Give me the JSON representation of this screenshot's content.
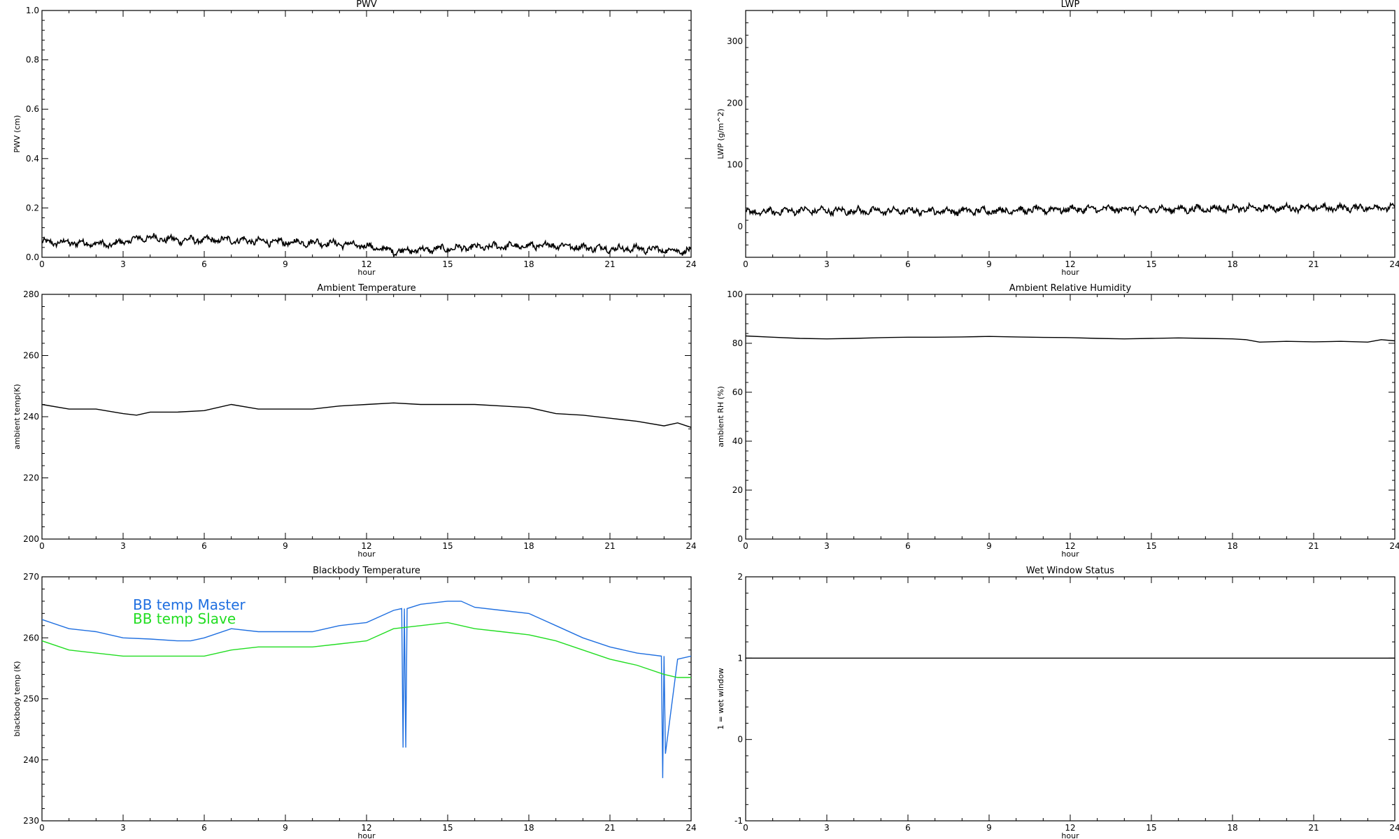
{
  "chart_data": [
    {
      "type": "line",
      "title": "PWV",
      "xlabel": "hour",
      "ylabel": "PWV (cm)",
      "xlim": [
        0,
        24
      ],
      "ylim": [
        0,
        1
      ],
      "xticks": [
        0,
        3,
        6,
        9,
        12,
        15,
        18,
        21,
        24
      ],
      "yticks": [
        0.0,
        0.2,
        0.4,
        0.6,
        0.8,
        1.0
      ],
      "ytick_labels": [
        "0.0",
        "0.2",
        "0.4",
        "0.6",
        "0.8",
        "1.0"
      ],
      "grid": false,
      "series": [
        {
          "color": "#000000",
          "noisy": true,
          "x": [
            0,
            1,
            2,
            2.5,
            3.5,
            4,
            5,
            6,
            7,
            8,
            9,
            10,
            11,
            12,
            12.5,
            13,
            14,
            15,
            16,
            17,
            18,
            19,
            20,
            21,
            22,
            23,
            24
          ],
          "y": [
            0.06,
            0.06,
            0.055,
            0.05,
            0.075,
            0.08,
            0.07,
            0.07,
            0.07,
            0.065,
            0.06,
            0.06,
            0.055,
            0.045,
            0.035,
            0.025,
            0.03,
            0.035,
            0.04,
            0.045,
            0.045,
            0.05,
            0.04,
            0.035,
            0.035,
            0.03,
            0.025
          ]
        }
      ]
    },
    {
      "type": "line",
      "title": "LWP",
      "xlabel": "hour",
      "ylabel": "LWP (g/m^2)",
      "xlim": [
        0,
        24
      ],
      "ylim": [
        -50,
        350
      ],
      "xticks": [
        0,
        3,
        6,
        9,
        12,
        15,
        18,
        21,
        24
      ],
      "yticks": [
        0,
        100,
        200,
        300
      ],
      "ytick_labels": [
        "0",
        "100",
        "200",
        "300"
      ],
      "grid": false,
      "series": [
        {
          "color": "#000000",
          "noisy": true,
          "x": [
            0,
            2,
            4,
            6,
            8,
            10,
            12,
            14,
            16,
            18,
            20,
            22,
            24
          ],
          "y": [
            22,
            26,
            25,
            25,
            25,
            26,
            28,
            28,
            28,
            29,
            30,
            30,
            31
          ]
        }
      ]
    },
    {
      "type": "line",
      "title": "Ambient Temperature",
      "xlabel": "hour",
      "ylabel": "ambient temp(K)",
      "xlim": [
        0,
        24
      ],
      "ylim": [
        200,
        280
      ],
      "xticks": [
        0,
        3,
        6,
        9,
        12,
        15,
        18,
        21,
        24
      ],
      "yticks": [
        200,
        220,
        240,
        260,
        280
      ],
      "ytick_labels": [
        "200",
        "220",
        "240",
        "260",
        "280"
      ],
      "grid": false,
      "series": [
        {
          "color": "#000000",
          "noisy": false,
          "x": [
            0,
            1,
            2,
            3,
            3.5,
            4,
            5,
            6,
            7,
            8,
            9,
            10,
            11,
            12,
            13,
            14,
            15,
            16,
            17,
            18,
            19,
            20,
            21,
            22,
            23,
            23.5,
            24
          ],
          "y": [
            244,
            242.5,
            242.5,
            241,
            240.5,
            241.5,
            241.5,
            242,
            244,
            242.5,
            242.5,
            242.5,
            243.5,
            244,
            244.5,
            244,
            244,
            244,
            243.5,
            243,
            241,
            240.5,
            239.5,
            238.5,
            237,
            238,
            236.5
          ]
        }
      ]
    },
    {
      "type": "line",
      "title": "Ambient Relative Humidity",
      "xlabel": "hour",
      "ylabel": "ambient RH (%)",
      "xlim": [
        0,
        24
      ],
      "ylim": [
        0,
        100
      ],
      "xticks": [
        0,
        3,
        6,
        9,
        12,
        15,
        18,
        21,
        24
      ],
      "yticks": [
        0,
        20,
        40,
        60,
        80,
        100
      ],
      "ytick_labels": [
        "0",
        "20",
        "40",
        "60",
        "80",
        "100"
      ],
      "grid": false,
      "series": [
        {
          "color": "#000000",
          "noisy": false,
          "x": [
            0,
            1,
            2,
            3,
            4,
            5,
            6,
            7,
            8,
            9,
            10,
            11,
            12,
            13,
            14,
            15,
            16,
            17,
            18,
            18.5,
            19,
            20,
            21,
            22,
            23,
            23.5,
            24
          ],
          "y": [
            83,
            82.5,
            82,
            81.8,
            82,
            82.3,
            82.5,
            82.5,
            82.6,
            82.8,
            82.6,
            82.4,
            82.3,
            82,
            81.8,
            82,
            82.2,
            82,
            81.8,
            81.5,
            80.5,
            80.8,
            80.6,
            80.8,
            80.5,
            81.5,
            81
          ]
        }
      ]
    },
    {
      "type": "line",
      "title": "Blackbody Temperature",
      "xlabel": "hour",
      "ylabel": "blackbody temp (K)",
      "xlim": [
        0,
        24
      ],
      "ylim": [
        230,
        270
      ],
      "xticks": [
        0,
        3,
        6,
        9,
        12,
        15,
        18,
        21,
        24
      ],
      "yticks": [
        230,
        240,
        250,
        260,
        270
      ],
      "ytick_labels": [
        "230",
        "240",
        "250",
        "260",
        "270"
      ],
      "grid": false,
      "legend": {
        "position": "top-left",
        "entries": [
          {
            "label": "BB temp Master",
            "color": "#1f6fe0"
          },
          {
            "label": "BB temp Slave",
            "color": "#22dd22"
          }
        ]
      },
      "series": [
        {
          "name": "BB temp Master",
          "color": "#1f6fe0",
          "noisy": false,
          "x": [
            0,
            1,
            2,
            3,
            4,
            5,
            5.5,
            6,
            7,
            8,
            9,
            10,
            11,
            12,
            13,
            13.3,
            13.35,
            13.4,
            13.45,
            13.5,
            14,
            15,
            15.5,
            16,
            17,
            18,
            19,
            20,
            21,
            22,
            22.9,
            22.95,
            23.0,
            23.05,
            23.5,
            24
          ],
          "y": [
            263,
            261.5,
            261,
            260,
            259.8,
            259.5,
            259.5,
            260,
            261.5,
            261,
            261,
            261,
            262,
            262.5,
            264.5,
            264.8,
            242,
            264.8,
            242,
            264.8,
            265.5,
            266,
            266,
            265,
            264.5,
            264,
            262,
            260,
            258.5,
            257.5,
            257,
            237,
            257,
            241,
            256.5,
            257
          ]
        },
        {
          "name": "BB temp Slave",
          "color": "#22dd22",
          "noisy": false,
          "x": [
            0,
            1,
            2,
            3,
            4,
            5,
            6,
            7,
            8,
            9,
            10,
            11,
            12,
            13,
            14,
            15,
            16,
            17,
            18,
            19,
            20,
            21,
            22,
            23,
            23.5,
            24
          ],
          "y": [
            259.5,
            258,
            257.5,
            257,
            257,
            257,
            257,
            258,
            258.5,
            258.5,
            258.5,
            259,
            259.5,
            261.5,
            262,
            262.5,
            261.5,
            261,
            260.5,
            259.5,
            258,
            256.5,
            255.5,
            254,
            253.5,
            253.5
          ]
        }
      ]
    },
    {
      "type": "line",
      "title": "Wet Window Status",
      "xlabel": "hour",
      "ylabel": "1 = wet window",
      "xlim": [
        0,
        24
      ],
      "ylim": [
        -1,
        2
      ],
      "xticks": [
        0,
        3,
        6,
        9,
        12,
        15,
        18,
        21,
        24
      ],
      "yticks": [
        -1,
        0,
        1,
        2
      ],
      "ytick_labels": [
        "-1",
        "0",
        "1",
        "2"
      ],
      "grid": false,
      "series": [
        {
          "color": "#000000",
          "noisy": false,
          "x": [
            0,
            24
          ],
          "y": [
            1,
            1
          ]
        }
      ]
    }
  ]
}
